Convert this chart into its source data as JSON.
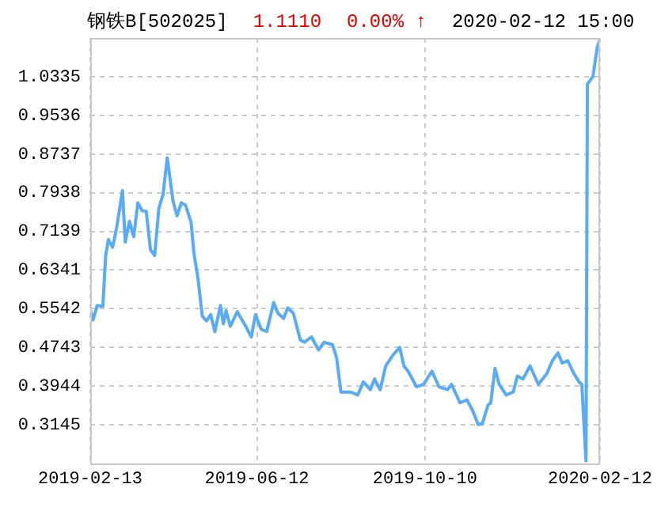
{
  "chart_data": {
    "type": "line",
    "title": "钢铁B[502025]",
    "annotations": [
      "1.1110",
      "0.00% ↑",
      "2020-02-12 15:00"
    ],
    "x": [
      "2019-02-13",
      "2019-02-15",
      "2019-02-18",
      "2019-02-22",
      "2019-02-24",
      "2019-02-26",
      "2019-03-01",
      "2019-03-04",
      "2019-03-08",
      "2019-03-10",
      "2019-03-13",
      "2019-03-16",
      "2019-03-19",
      "2019-03-22",
      "2019-03-25",
      "2019-03-28",
      "2019-03-31",
      "2019-04-03",
      "2019-04-06",
      "2019-04-09",
      "2019-04-13",
      "2019-04-16",
      "2019-04-19",
      "2019-04-22",
      "2019-04-26",
      "2019-04-28",
      "2019-05-01",
      "2019-05-04",
      "2019-05-07",
      "2019-05-10",
      "2019-05-13",
      "2019-05-17",
      "2019-05-19",
      "2019-05-21",
      "2019-05-24",
      "2019-05-29",
      "2019-06-04",
      "2019-06-08",
      "2019-06-11",
      "2019-06-15",
      "2019-06-19",
      "2019-06-24",
      "2019-06-27",
      "2019-07-01",
      "2019-07-04",
      "2019-07-08",
      "2019-07-13",
      "2019-07-16",
      "2019-07-21",
      "2019-07-26",
      "2019-07-30",
      "2019-08-05",
      "2019-08-08",
      "2019-08-11",
      "2019-08-18",
      "2019-08-23",
      "2019-08-27",
      "2019-09-01",
      "2019-09-04",
      "2019-09-08",
      "2019-09-12",
      "2019-09-17",
      "2019-09-22",
      "2019-09-25",
      "2019-09-28",
      "2019-10-04",
      "2019-10-09",
      "2019-10-15",
      "2019-10-20",
      "2019-10-26",
      "2019-10-29",
      "2019-11-04",
      "2019-11-09",
      "2019-11-13",
      "2019-11-17",
      "2019-11-20",
      "2019-11-24",
      "2019-11-26",
      "2019-11-29",
      "2019-12-02",
      "2019-12-07",
      "2019-12-12",
      "2019-12-15",
      "2019-12-19",
      "2019-12-24",
      "2019-12-30",
      "2020-01-05",
      "2020-01-09",
      "2020-01-13",
      "2020-01-16",
      "2020-01-20",
      "2020-01-24",
      "2020-01-28",
      "2020-01-30",
      "2020-02-02",
      "2020-02-03",
      "2020-02-07",
      "2020-02-10",
      "2020-02-12"
    ],
    "series": [
      {
        "color": "#5aabf5",
        "values": [
          0.552,
          0.531,
          0.561,
          0.559,
          0.664,
          0.697,
          0.681,
          0.724,
          0.798,
          0.692,
          0.735,
          0.703,
          0.773,
          0.757,
          0.755,
          0.676,
          0.664,
          0.762,
          0.79,
          0.866,
          0.778,
          0.746,
          0.773,
          0.768,
          0.733,
          0.67,
          0.615,
          0.539,
          0.529,
          0.542,
          0.507,
          0.561,
          0.523,
          0.55,
          0.518,
          0.548,
          0.518,
          0.496,
          0.542,
          0.512,
          0.507,
          0.567,
          0.545,
          0.534,
          0.556,
          0.545,
          0.49,
          0.485,
          0.496,
          0.469,
          0.485,
          0.48,
          0.452,
          0.382,
          0.382,
          0.376,
          0.403,
          0.387,
          0.409,
          0.387,
          0.436,
          0.458,
          0.474,
          0.436,
          0.425,
          0.393,
          0.398,
          0.425,
          0.393,
          0.387,
          0.398,
          0.36,
          0.366,
          0.344,
          0.315,
          0.317,
          0.355,
          0.36,
          0.431,
          0.398,
          0.376,
          0.382,
          0.415,
          0.409,
          0.436,
          0.398,
          0.42,
          0.447,
          0.463,
          0.442,
          0.447,
          0.422,
          0.403,
          0.398,
          0.24,
          1.018,
          1.034,
          1.094,
          1.111
        ]
      }
    ],
    "xlim": [
      "2019-02-13",
      "2020-02-12"
    ],
    "xticks": [
      "2019-02-13",
      "2019-06-12",
      "2019-10-10",
      "2020-02-12"
    ],
    "ylim": [
      0.2346,
      1.1134
    ],
    "yticks": [
      0.3145,
      0.3944,
      0.4743,
      0.5542,
      0.6341,
      0.7139,
      0.7938,
      0.8737,
      0.9536,
      1.0335
    ],
    "grid": true,
    "legend": false,
    "marker": "none",
    "line_style": "solid"
  }
}
